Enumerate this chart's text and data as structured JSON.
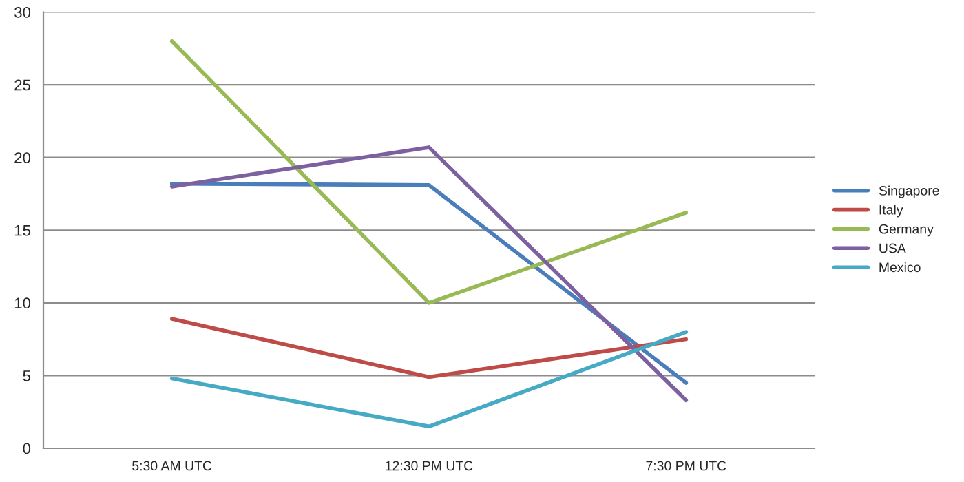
{
  "chart_data": {
    "type": "line",
    "categories": [
      "5:30 AM UTC",
      "12:30 PM UTC",
      "7:30 PM UTC"
    ],
    "series": [
      {
        "name": "Singapore",
        "color": "#4a7ebb",
        "values": [
          18.2,
          18.1,
          4.5
        ]
      },
      {
        "name": "Italy",
        "color": "#be4b48",
        "values": [
          8.9,
          4.9,
          7.5
        ]
      },
      {
        "name": "Germany",
        "color": "#98b954",
        "values": [
          28,
          10,
          16.2
        ]
      },
      {
        "name": "USA",
        "color": "#7d60a0",
        "values": [
          18,
          20.7,
          3.3
        ]
      },
      {
        "name": "Mexico",
        "color": "#46aac5",
        "values": [
          4.8,
          1.5,
          8
        ]
      }
    ],
    "ylim": [
      0,
      30
    ],
    "yticks": [
      0,
      5,
      10,
      15,
      20,
      25,
      30
    ],
    "grid": "y",
    "legend": "right",
    "marker": "none",
    "line_style": "solid"
  }
}
